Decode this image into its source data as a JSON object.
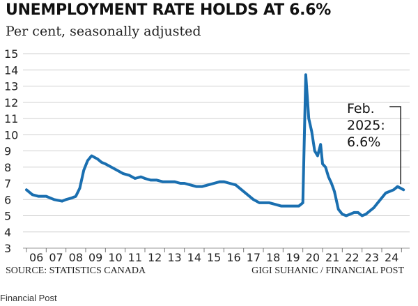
{
  "chart_data": {
    "type": "line",
    "title": "UNEMPLOYMENT RATE HOLDS AT 6.6%",
    "subtitle": "Per cent, seasonally adjusted",
    "ylim": [
      3,
      15
    ],
    "yticks": [
      3,
      4,
      5,
      6,
      7,
      8,
      9,
      10,
      11,
      12,
      13,
      14,
      15
    ],
    "xlim": [
      2006,
      2025.2
    ],
    "x_tick_labels": [
      "06",
      "07",
      "08",
      "09",
      "10",
      "11",
      "12",
      "13",
      "14",
      "15",
      "16",
      "17",
      "18",
      "19",
      "20",
      "21",
      "22",
      "23",
      "24"
    ],
    "grid": true,
    "line_color": "#1a6fb0",
    "series": [
      {
        "name": "Unemployment rate",
        "x": [
          2006.0,
          2006.3,
          2006.6,
          2007.0,
          2007.4,
          2007.8,
          2008.0,
          2008.3,
          2008.5,
          2008.7,
          2008.9,
          2009.1,
          2009.3,
          2009.6,
          2009.8,
          2010.0,
          2010.3,
          2010.6,
          2010.9,
          2011.2,
          2011.5,
          2011.8,
          2012.0,
          2012.3,
          2012.6,
          2012.9,
          2013.2,
          2013.5,
          2013.8,
          2014.0,
          2014.3,
          2014.6,
          2014.9,
          2015.2,
          2015.5,
          2015.8,
          2016.0,
          2016.3,
          2016.6,
          2016.9,
          2017.2,
          2017.5,
          2017.8,
          2018.0,
          2018.3,
          2018.6,
          2018.9,
          2019.2,
          2019.5,
          2019.8,
          2020.0,
          2020.15,
          2020.3,
          2020.45,
          2020.6,
          2020.75,
          2020.9,
          2021.0,
          2021.15,
          2021.3,
          2021.45,
          2021.6,
          2021.8,
          2022.0,
          2022.2,
          2022.4,
          2022.6,
          2022.8,
          2023.0,
          2023.2,
          2023.4,
          2023.6,
          2023.8,
          2024.0,
          2024.2,
          2024.4,
          2024.6,
          2024.8,
          2025.1
        ],
        "values": [
          6.6,
          6.3,
          6.2,
          6.2,
          6.0,
          5.9,
          6.0,
          6.1,
          6.2,
          6.7,
          7.8,
          8.4,
          8.7,
          8.5,
          8.3,
          8.2,
          8.0,
          7.8,
          7.6,
          7.5,
          7.3,
          7.4,
          7.3,
          7.2,
          7.2,
          7.1,
          7.1,
          7.1,
          7.0,
          7.0,
          6.9,
          6.8,
          6.8,
          6.9,
          7.0,
          7.1,
          7.1,
          7.0,
          6.9,
          6.6,
          6.3,
          6.0,
          5.8,
          5.8,
          5.8,
          5.7,
          5.6,
          5.6,
          5.6,
          5.6,
          5.8,
          13.7,
          11.0,
          10.2,
          9.0,
          8.7,
          9.4,
          8.2,
          8.0,
          7.4,
          7.0,
          6.5,
          5.4,
          5.1,
          5.0,
          5.1,
          5.2,
          5.2,
          5.0,
          5.1,
          5.3,
          5.5,
          5.8,
          6.1,
          6.4,
          6.5,
          6.6,
          6.8,
          6.6
        ]
      }
    ],
    "annotations": [
      {
        "line1": "Feb.",
        "line2": "2025:",
        "line3": "6.6%",
        "x": 2025.1,
        "y": 6.6
      }
    ],
    "source": "SOURCE: STATISTICS CANADA",
    "credit": "GIGI SUHANIC / FINANCIAL POST"
  },
  "footer": "Financial Post"
}
